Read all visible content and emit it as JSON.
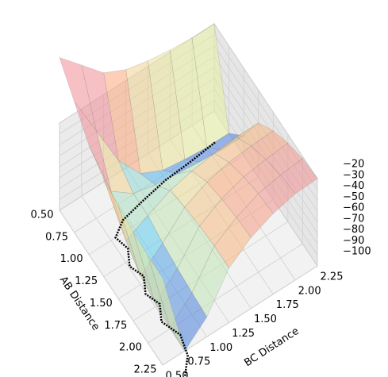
{
  "chart_data": {
    "type": "surface3d",
    "xlabel": "AB Distance",
    "ylabel": "BC Distance",
    "x": [
      0.5,
      0.75,
      1.0,
      1.25,
      1.5,
      1.75,
      2.0,
      2.25
    ],
    "y": [
      0.5,
      0.75,
      1.0,
      1.25,
      1.5,
      1.75,
      2.0,
      2.25
    ],
    "z": [
      [
        40,
        20,
        0,
        -10,
        -15,
        -18,
        -20,
        -20
      ],
      [
        20,
        -20,
        -60,
        -85,
        -95,
        -98,
        -100,
        -100
      ],
      [
        0,
        -55,
        -70,
        -75,
        -78,
        -80,
        -82,
        -82
      ],
      [
        -10,
        -80,
        -70,
        -60,
        -55,
        -52,
        -50,
        -50
      ],
      [
        -15,
        -92,
        -75,
        -55,
        -45,
        -40,
        -38,
        -37
      ],
      [
        -18,
        -97,
        -78,
        -52,
        -40,
        -33,
        -30,
        -28
      ],
      [
        -20,
        -99,
        -80,
        -50,
        -37,
        -28,
        -24,
        -22
      ],
      [
        -20,
        -100,
        -82,
        -50,
        -35,
        -26,
        -21,
        -20
      ]
    ],
    "xlim": [
      0.5,
      2.25
    ],
    "ylim": [
      0.5,
      2.25
    ],
    "zlim": [
      -100,
      -20
    ],
    "xticks": [
      {
        "value": 0.5,
        "label": "0.50"
      },
      0.75,
      {
        "value": 1.0,
        "label": "1.00"
      },
      1.25,
      {
        "value": 1.5,
        "label": "1.50"
      },
      1.75,
      {
        "value": 2.0,
        "label": "2.00"
      },
      2.25
    ],
    "yticks": [
      {
        "value": 0.5,
        "label": "0.50"
      },
      0.75,
      {
        "value": 1.0,
        "label": "1.00"
      },
      1.25,
      {
        "value": 1.5,
        "label": "1.50"
      },
      1.75,
      {
        "value": 2.0,
        "label": "2.00"
      },
      2.25
    ],
    "zticks": [
      {
        "value": -100,
        "label": "−100"
      },
      {
        "value": -90,
        "label": "−90"
      },
      {
        "value": -80,
        "label": "−80"
      },
      {
        "value": -70,
        "label": "−70"
      },
      {
        "value": -60,
        "label": "−60"
      },
      {
        "value": -50,
        "label": "−50"
      },
      {
        "value": -40,
        "label": "−40"
      },
      {
        "value": -30,
        "label": "−30"
      },
      {
        "value": -20,
        "label": "−20"
      }
    ],
    "trajectory": {
      "color": "#000000",
      "x": [
        2.45,
        2.3,
        2.1,
        1.9,
        1.75,
        1.6,
        1.45,
        1.3,
        1.15,
        1.0,
        0.9,
        0.85,
        0.8,
        0.78,
        0.75
      ],
      "y": [
        0.62,
        0.75,
        0.8,
        0.72,
        0.8,
        0.74,
        0.82,
        0.76,
        0.84,
        0.8,
        0.95,
        1.2,
        1.5,
        1.8,
        2.1
      ]
    }
  }
}
